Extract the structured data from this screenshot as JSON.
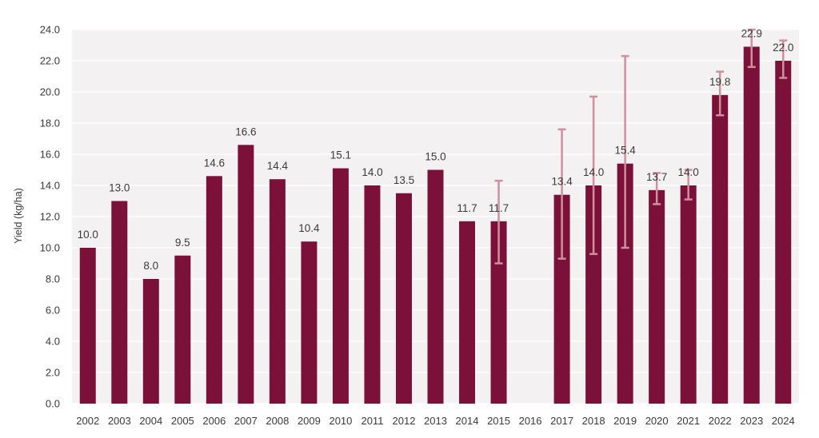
{
  "colors": {
    "bar": "#7b1139",
    "error_bar": "#cf909e",
    "plot_background": "#f4f1f2",
    "gridline": "#ffffff"
  },
  "chart_data": {
    "type": "bar",
    "title": "",
    "xlabel": "",
    "ylabel": "Yield (kg/ha)",
    "ylim": [
      0,
      24
    ],
    "ytick_step": 2,
    "grid": true,
    "legend": "none",
    "categories": [
      "2002",
      "2003",
      "2004",
      "2005",
      "2006",
      "2007",
      "2008",
      "2009",
      "2010",
      "2011",
      "2012",
      "2013",
      "2014",
      "2015",
      "2016",
      "2017",
      "2018",
      "2019",
      "2020",
      "2021",
      "2022",
      "2023",
      "2024"
    ],
    "values": [
      10.0,
      13.0,
      8.0,
      9.5,
      14.6,
      16.6,
      14.4,
      10.4,
      15.1,
      14.0,
      13.5,
      15.0,
      11.7,
      11.7,
      null,
      13.4,
      14.0,
      15.4,
      13.7,
      14.0,
      19.8,
      22.9,
      22.0
    ],
    "data_labels": [
      "10.0",
      "13.0",
      "8.0",
      "9.5",
      "14.6",
      "16.6",
      "14.4",
      "10.4",
      "15.1",
      "14.0",
      "13.5",
      "15.0",
      "11.7",
      "11.7",
      "",
      "13.4",
      "14.0",
      "15.4",
      "13.7",
      "14.0",
      "19.8",
      "22.9",
      "22.0"
    ],
    "error_bars": [
      null,
      null,
      null,
      null,
      null,
      null,
      null,
      null,
      null,
      null,
      null,
      null,
      null,
      [
        9.0,
        14.3
      ],
      null,
      [
        9.3,
        17.6
      ],
      [
        9.6,
        19.7
      ],
      [
        10.0,
        22.3
      ],
      [
        12.8,
        14.8
      ],
      [
        13.1,
        15.0
      ],
      [
        18.5,
        21.3
      ],
      [
        21.6,
        24.0
      ],
      [
        20.9,
        23.3
      ]
    ]
  }
}
